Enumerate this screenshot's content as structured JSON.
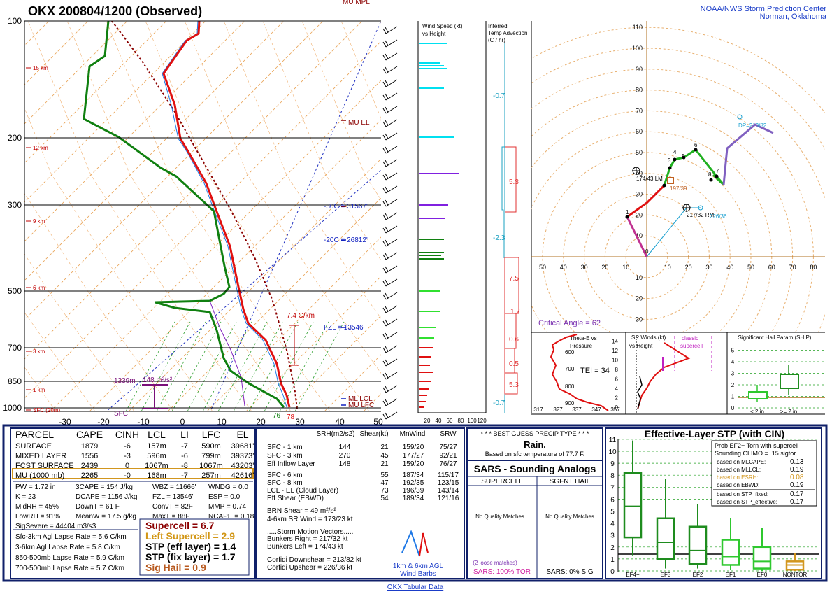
{
  "header": {
    "title": "OKX   200804/1200   (Observed)",
    "credit": [
      "NOAA/NWS Storm Prediction Center",
      "Norman, Oklahoma"
    ]
  },
  "skewt": {
    "pressures": [
      100,
      200,
      300,
      500,
      700,
      850,
      1000
    ],
    "temps": [
      -30,
      -20,
      -10,
      0,
      10,
      20,
      30,
      40,
      50
    ],
    "heights": [
      "15 km",
      "12 km",
      "9 km",
      "6 km",
      "3 km",
      "1 km",
      "SFC (20m)"
    ],
    "annotations": [
      "MU MPL",
      "MU EL",
      "-30C = 31567'",
      "-20C = 26812'",
      "FZL = 13546'",
      "ML LCL",
      "MU LFC",
      "7.4 C/km",
      "1339m",
      "148 m²/s²",
      "SFC",
      "76",
      "78"
    ]
  },
  "wind_panel": {
    "title": [
      "Wind Speed (kt)",
      "vs Height"
    ],
    "ticks": [
      20,
      40,
      60,
      80,
      100,
      120
    ]
  },
  "advection": {
    "title": [
      "Inferred",
      "Temp Advection",
      "(C / hr)"
    ],
    "values": [
      -0.7,
      5.3,
      -2.3,
      7.5,
      1.7,
      0.6,
      0.5,
      5.3,
      -0.7
    ]
  },
  "hodograph": {
    "x_labels": [
      50,
      40,
      30,
      20,
      10,
      10,
      20,
      30,
      40,
      50,
      60,
      70,
      80
    ],
    "y_labels": [
      110,
      100,
      90,
      80,
      70,
      60,
      50,
      40,
      30,
      20,
      10,
      10,
      20,
      30
    ],
    "points": [
      0,
      1,
      3,
      4,
      5,
      6,
      7,
      8
    ],
    "labels": [
      "174/43 LM",
      "197/39",
      "217/32 RM",
      "226/36",
      "DP=213/82"
    ],
    "critical": "Critical Angle = 62"
  },
  "thetae": {
    "title": [
      "Theta-E vs",
      "Pressure"
    ],
    "y_ticks": [
      600,
      700,
      800,
      900
    ],
    "x_ticks": [
      317,
      327,
      337,
      347,
      357
    ],
    "tei": "TEI = 34"
  },
  "srwinds": {
    "title": [
      "SR Winds (kt)",
      "vs Height"
    ],
    "note": [
      "classic",
      "supercell"
    ],
    "y_ticks": [
      0,
      2,
      4,
      6,
      8,
      10,
      12,
      14
    ]
  },
  "ship": {
    "title": "Significant Hail Param (SHIP)",
    "y_ticks": [
      0,
      1,
      2,
      3,
      4,
      5
    ],
    "categories": [
      "< 2 in",
      ">= 2 in"
    ]
  },
  "parcel": {
    "headers": [
      "PARCEL",
      "CAPE",
      "CINH",
      "LCL",
      "LI",
      "LFC",
      "EL"
    ],
    "rows": [
      [
        "SURFACE",
        1879,
        -6,
        "157m",
        -7,
        "590m",
        "39681'"
      ],
      [
        "MIXED LAYER",
        1556,
        -3,
        "596m",
        -6,
        "799m",
        "39373'"
      ],
      [
        "FCST SURFACE",
        2439,
        0,
        "1067m",
        -8,
        "1067m",
        "43203'"
      ],
      [
        "MU  (1000 mb)",
        2265,
        "-0",
        "168m",
        -7,
        "257m",
        "42616'"
      ]
    ]
  },
  "indices": [
    [
      "PW = 1.72 in",
      "K = 23",
      "MidRH = 45%",
      "LowRH = 91%",
      "SigSevere = 44404 m3/s3"
    ],
    [
      "3CAPE = 154 J/kg",
      "DCAPE = 1156 J/kg",
      "DownT = 61 F",
      "MeanW = 17.5 g/kg"
    ],
    [
      "WBZ = 11666'",
      "FZL = 13546'",
      "ConvT = 82F",
      "MaxT = 88F"
    ],
    [
      "WNDG = 0.0",
      "ESP = 0.0",
      "MMP = 0.74",
      "NCAPE = 0.18"
    ]
  ],
  "lapse_rates": [
    "Sfc-3km Agl Lapse Rate = 5.6 C/km",
    "3-6km Agl Lapse Rate = 5.8 C/km",
    "850-500mb Lapse Rate = 5.9 C/km",
    "700-500mb Lapse Rate = 5.7 C/km"
  ],
  "composites": [
    "Supercell = 6.7",
    "Left Supercell = 2.9",
    "STP (eff layer) = 1.4",
    "STP (fix layer) = 1.7",
    "Sig Hail = 0.9"
  ],
  "kinematics": {
    "headers": [
      "SRH(m2/s2)",
      "Shear(kt)",
      "MnWind",
      "SRW"
    ],
    "rows": [
      [
        "SFC - 1 km",
        144,
        21,
        "159/20",
        "75/27"
      ],
      [
        "SFC - 3 km",
        270,
        45,
        "177/27",
        "92/21"
      ],
      [
        "Eff Inflow Layer",
        148,
        21,
        "159/20",
        "76/27"
      ]
    ],
    "rows2": [
      [
        "SFC - 6 km",
        55,
        "187/34",
        "115/17"
      ],
      [
        "SFC - 8 km",
        47,
        "192/35",
        "123/15"
      ],
      [
        "LCL - EL (Cloud Layer)",
        73,
        "196/39",
        "143/14"
      ],
      [
        "Eff Shear (EBWD)",
        54,
        "189/34",
        "121/16"
      ]
    ],
    "notes": [
      "BRN Shear = 49 m²/s²",
      "4-6km SR Wind =        173/23 kt",
      ".....Storm Motion Vectors.....",
      "Bunkers Right =         217/32 kt",
      "Bunkers Left =           174/43 kt",
      "Corfidi Downshear =    213/82 kt",
      "Corfidi Upshear =       226/36 kt"
    ],
    "legend": [
      "1km & 6km AGL",
      "Wind Barbs"
    ]
  },
  "precip": {
    "title": "* * * BEST GUESS PRECIP TYPE * * *",
    "type": "Rain.",
    "basis": "Based on sfc temperature of 77.7 F."
  },
  "sars": {
    "title": "SARS - Sounding Analogs",
    "columns": [
      "SUPERCELL",
      "SGFNT HAIL"
    ],
    "matches": [
      "No Quality Matches",
      "No Quality Matches"
    ],
    "loose": "(2 loose matches)",
    "results": [
      "SARS:  100% TOR",
      "SARS:  0% SIG"
    ]
  },
  "stp": {
    "title": "Effective-Layer STP (with CIN)",
    "y_ticks": [
      0,
      1,
      2,
      3,
      4,
      5,
      6,
      7,
      8,
      9,
      10,
      11
    ],
    "boxes": [
      {
        "name": "EF4+",
        "min": 1.3,
        "q1": 2.8,
        "median": 5.4,
        "q3": 8.2,
        "max": 10.9,
        "color": "#1e8c1e"
      },
      {
        "name": "EF3",
        "min": 0.2,
        "q1": 1,
        "median": 2.4,
        "q3": 4.4,
        "max": 7.7,
        "color": "#1e8c1e"
      },
      {
        "name": "EF2",
        "min": 0.2,
        "q1": 0.6,
        "median": 1.7,
        "q3": 3.7,
        "max": 5.6,
        "color": "#1e8c1e"
      },
      {
        "name": "EF1",
        "min": 0.1,
        "q1": 0.5,
        "median": 1.2,
        "q3": 2.6,
        "max": 4.4,
        "color": "#2fc82f"
      },
      {
        "name": "EF0",
        "min": 0,
        "q1": 0.2,
        "median": 0.8,
        "q3": 2,
        "max": 3.6,
        "color": "#2fc82f"
      },
      {
        "name": "NONTOR",
        "min": 0,
        "q1": 0.1,
        "median": 0.5,
        "q3": 0.8,
        "max": 1.5,
        "color": "#d2961e"
      }
    ],
    "legend": [
      "Prob EF2+ Torn with supercell",
      "Sounding CLIMO = .15 sigtor"
    ],
    "probs": [
      [
        "based on MLCAPE:",
        "0.13"
      ],
      [
        "based on MLLCL:",
        "0.19"
      ],
      [
        "based on ESRH:",
        "0.08"
      ],
      [
        "based on EBWD:",
        "0.19"
      ],
      [
        "based on STP_fixed:",
        "0.17"
      ],
      [
        "based on STP_effective:",
        "0.17"
      ]
    ]
  },
  "footer": {
    "link": "OKX Tabular Data"
  }
}
